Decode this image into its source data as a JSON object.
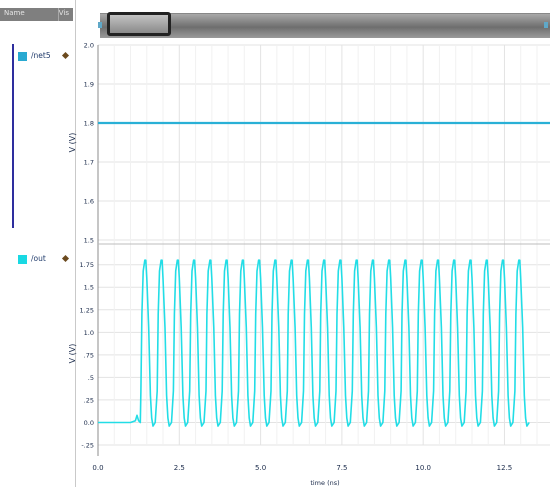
{
  "sidebar": {
    "header_name": "Name",
    "header_vis": "Vis",
    "signals": [
      {
        "label": "/net5",
        "color": "#29a9d1"
      },
      {
        "label": "/out",
        "color": "#19d9e3"
      }
    ]
  },
  "colors": {
    "trace_top": "#29b0d6",
    "trace_bottom": "#22dde6",
    "grid": "#e3e3e3",
    "axis_text": "#1a2a4a"
  },
  "chart_data": [
    {
      "type": "line",
      "ylabel": "V (V)",
      "ylim": [
        1.5,
        2.0
      ],
      "yticks": [
        "2.0",
        "1.9",
        "1.8",
        "1.7",
        "1.6",
        "1.5"
      ],
      "series": [
        {
          "name": "/net5",
          "x": [
            0.0,
            13.9
          ],
          "y": [
            1.8,
            1.8
          ]
        }
      ]
    },
    {
      "type": "line",
      "ylabel": "V (V)",
      "ylim": [
        -0.25,
        1.9
      ],
      "yticks": [
        "1.75",
        "1.5",
        "1.25",
        "1.0",
        ".75",
        ".5",
        ".25",
        "0.0",
        "-.25"
      ],
      "series": [
        {
          "name": "/out",
          "waveform": {
            "low": 0.0,
            "high": 1.8,
            "start": 1.3,
            "period": 0.5,
            "cycles": 24
          },
          "pre_pulse": {
            "x": [
              0.0,
              1.0,
              1.15,
              1.2,
              1.25,
              1.3
            ],
            "y": [
              0.0,
              0.0,
              0.02,
              0.08,
              0.02,
              0.0
            ]
          }
        }
      ]
    }
  ],
  "xaxis": {
    "label": "time (ns)",
    "xlim": [
      0.0,
      13.9
    ],
    "ticks": [
      {
        "value": 0.0,
        "label": "0.0"
      },
      {
        "value": 2.5,
        "label": "2.5"
      },
      {
        "value": 5.0,
        "label": "5.0"
      },
      {
        "value": 7.5,
        "label": "7.5"
      },
      {
        "value": 10.0,
        "label": "10.0"
      },
      {
        "value": 12.5,
        "label": "12.5"
      }
    ]
  }
}
